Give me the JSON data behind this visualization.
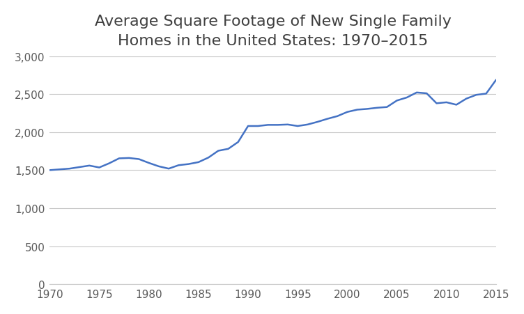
{
  "title": "Average Square Footage of New Single Family\nHomes in the United States: 1970–2015",
  "title_fontsize": 16,
  "line_color": "#4472C4",
  "line_width": 1.8,
  "years": [
    1970,
    1971,
    1972,
    1973,
    1974,
    1975,
    1976,
    1977,
    1978,
    1979,
    1980,
    1981,
    1982,
    1983,
    1984,
    1985,
    1986,
    1987,
    1988,
    1989,
    1990,
    1991,
    1992,
    1993,
    1994,
    1995,
    1996,
    1997,
    1998,
    1999,
    2000,
    2001,
    2002,
    2003,
    2004,
    2005,
    2006,
    2007,
    2008,
    2009,
    2010,
    2011,
    2012,
    2013,
    2014,
    2015
  ],
  "sqft": [
    1500,
    1510,
    1520,
    1540,
    1560,
    1535,
    1590,
    1655,
    1660,
    1645,
    1595,
    1550,
    1520,
    1565,
    1580,
    1605,
    1665,
    1755,
    1780,
    1870,
    2080,
    2080,
    2095,
    2095,
    2100,
    2080,
    2100,
    2135,
    2175,
    2210,
    2265,
    2295,
    2305,
    2320,
    2330,
    2415,
    2455,
    2521,
    2510,
    2379,
    2392,
    2360,
    2440,
    2490,
    2506,
    2687
  ],
  "xlim": [
    1970,
    2015
  ],
  "ylim": [
    0,
    3000
  ],
  "yticks": [
    0,
    500,
    1000,
    1500,
    2000,
    2500,
    3000
  ],
  "xticks": [
    1970,
    1975,
    1980,
    1985,
    1990,
    1995,
    2000,
    2005,
    2010,
    2015
  ],
  "background_color": "#ffffff",
  "grid_color": "#c8c8c8",
  "tick_label_color": "#595959",
  "title_color": "#404040"
}
